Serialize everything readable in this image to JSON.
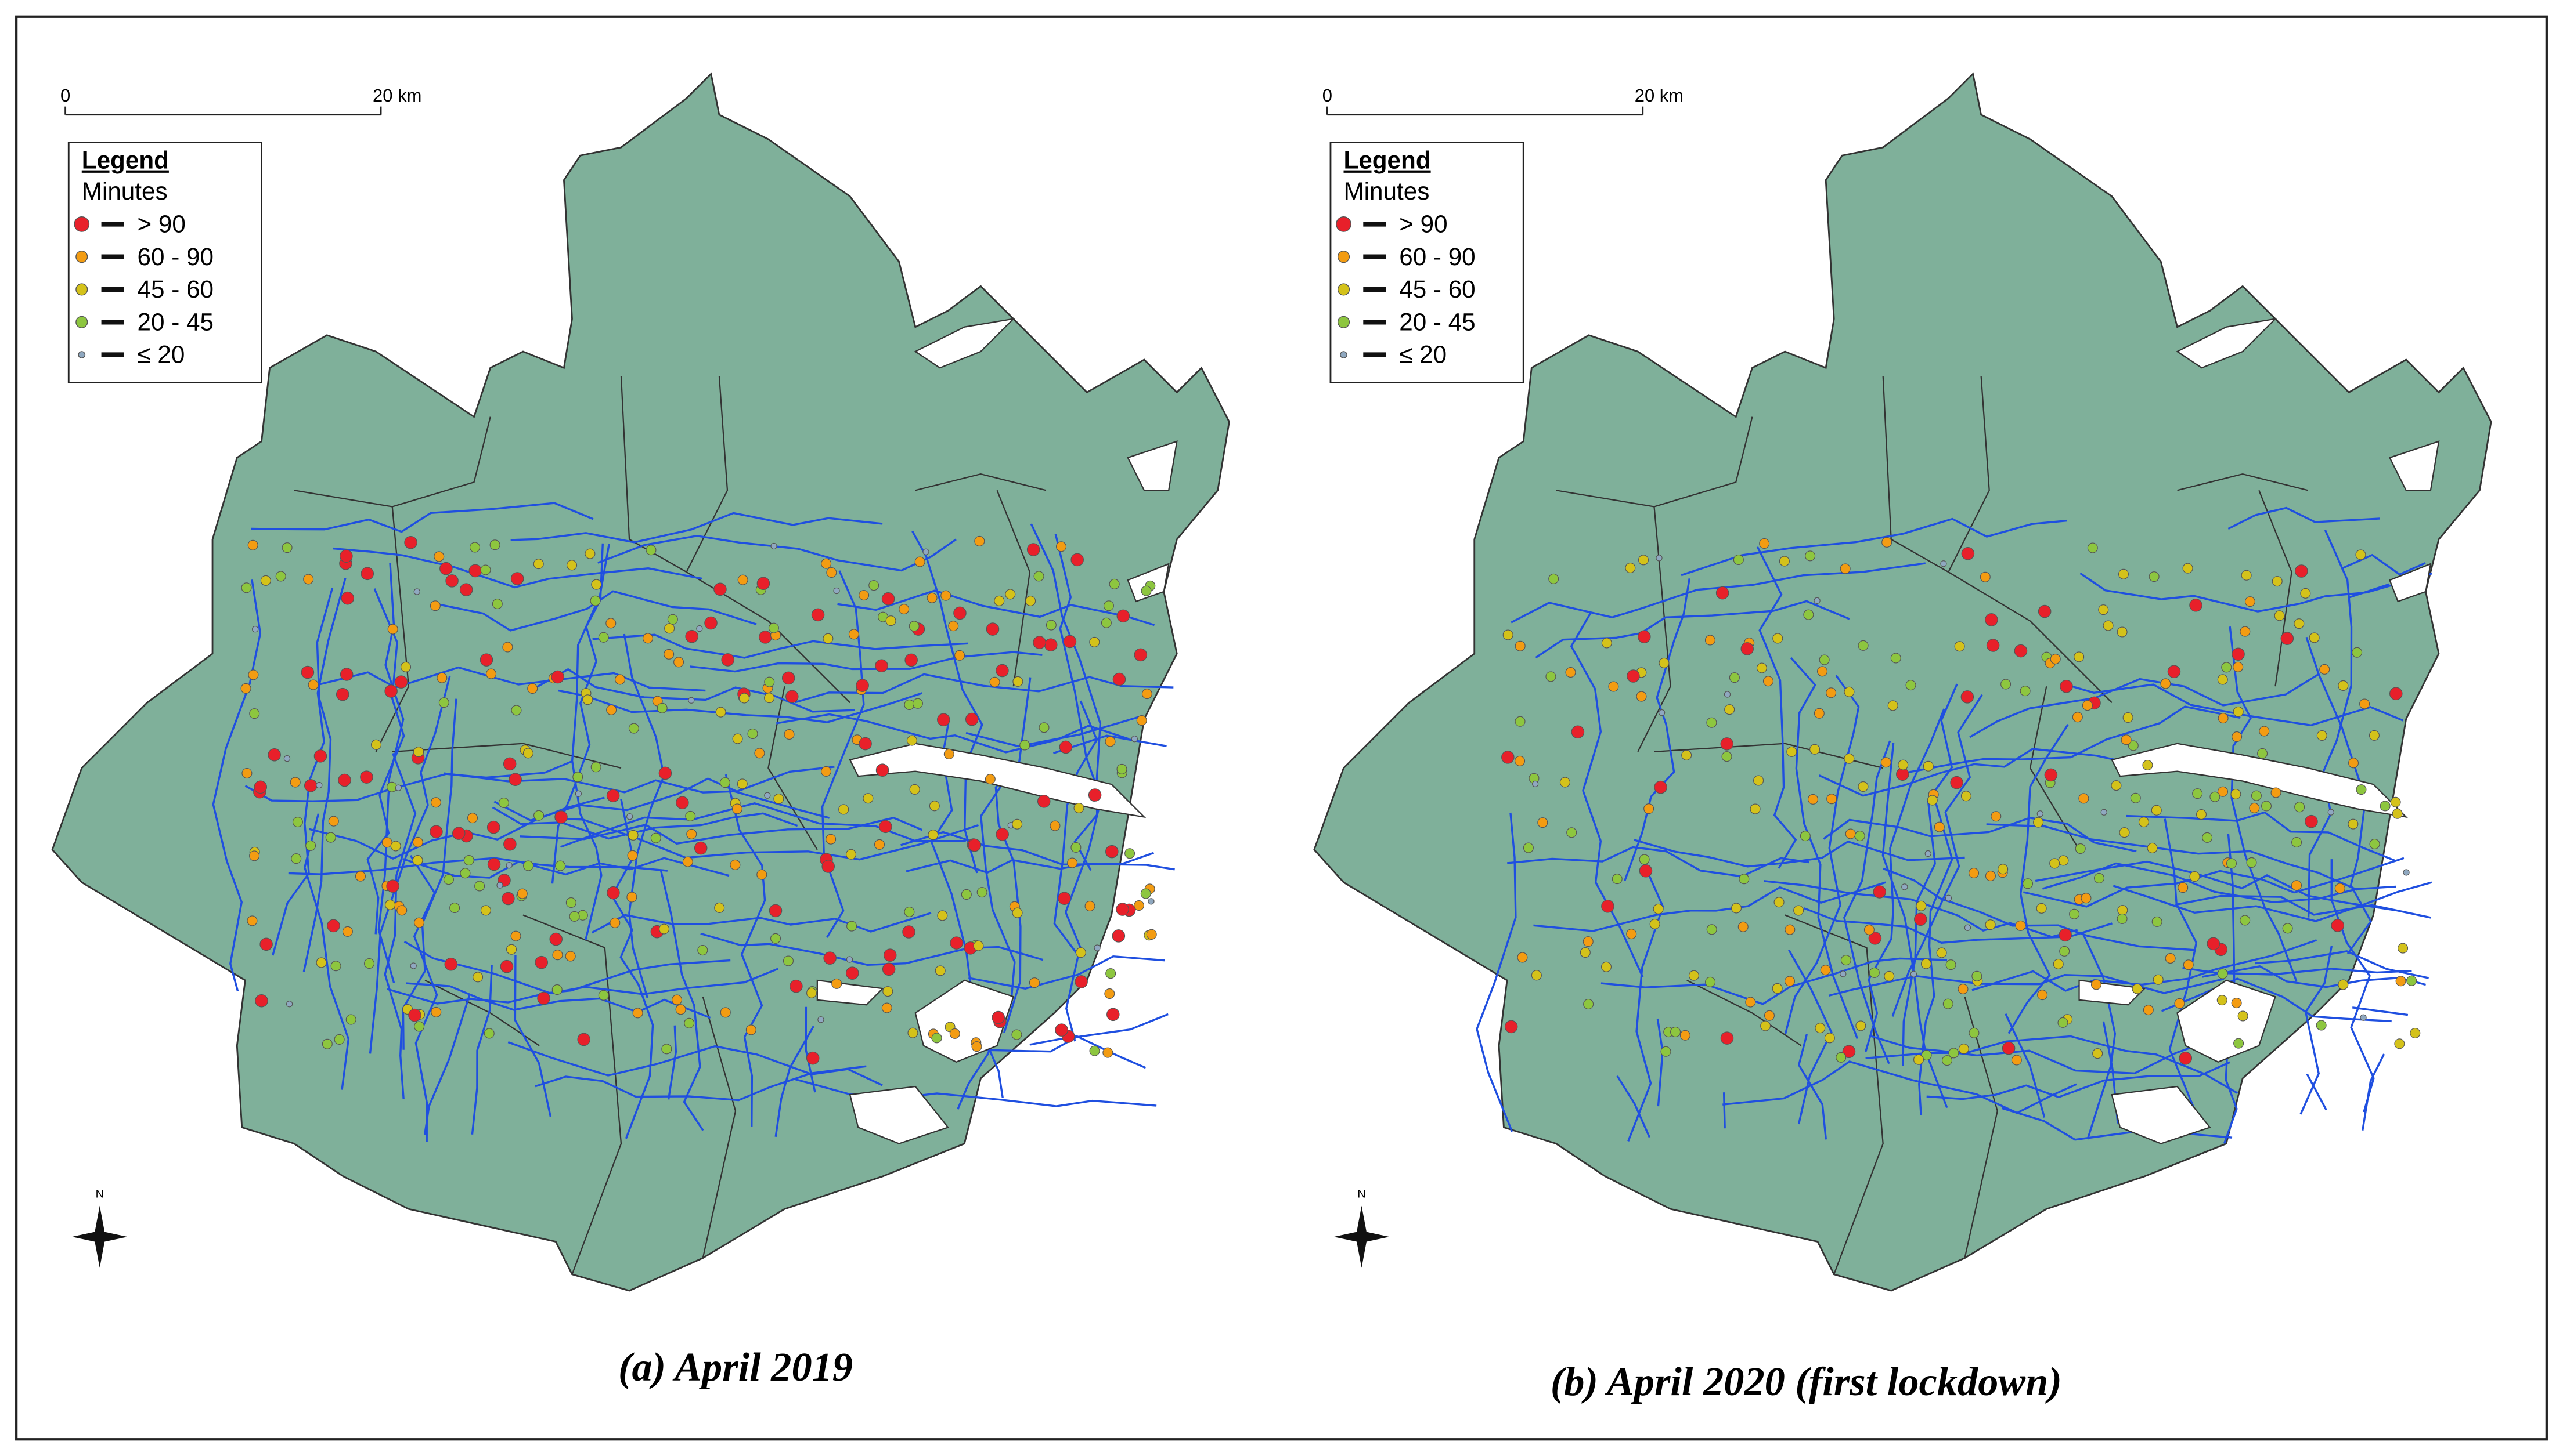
{
  "panels": [
    {
      "caption": "(a) April 2019",
      "scale_bar": {
        "start": "0",
        "end": "20 km"
      },
      "legend": {
        "title": "Legend",
        "subtitle": "Minutes",
        "items": [
          {
            "label": "> 90",
            "color": "#e8202a"
          },
          {
            "label": "60 - 90",
            "color": "#f39c12"
          },
          {
            "label": "45 - 60",
            "color": "#d4c21a"
          },
          {
            "label": "20 - 45",
            "color": "#8dc63f"
          },
          {
            "label": "≤ 20",
            "color": "#8fa8c0"
          }
        ]
      },
      "north": "N"
    },
    {
      "caption": "(b) April 2020 (first lockdown)",
      "scale_bar": {
        "start": "0",
        "end": "20 km"
      },
      "legend": {
        "title": "Legend",
        "subtitle": "Minutes",
        "items": [
          {
            "label": "> 90",
            "color": "#e8202a"
          },
          {
            "label": "60 - 90",
            "color": "#f39c12"
          },
          {
            "label": "45 - 60",
            "color": "#d4c21a"
          },
          {
            "label": "20 - 45",
            "color": "#8dc63f"
          },
          {
            "label": "≤ 20",
            "color": "#8fa8c0"
          }
        ]
      },
      "north": "N"
    }
  ]
}
